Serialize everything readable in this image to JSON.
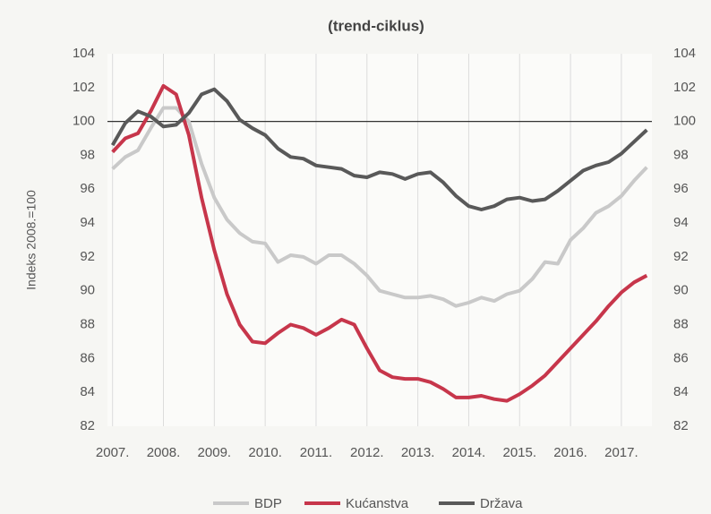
{
  "chart_data": {
    "type": "line",
    "title": "(trend-ciklus)",
    "y_label": "Indeks 2008.=100",
    "x": [
      2007,
      2007.25,
      2007.5,
      2007.75,
      2008,
      2008.25,
      2008.5,
      2008.75,
      2009,
      2009.25,
      2009.5,
      2009.75,
      2010,
      2010.25,
      2010.5,
      2010.75,
      2011,
      2011.25,
      2011.5,
      2011.75,
      2012,
      2012.25,
      2012.5,
      2012.75,
      2013,
      2013.25,
      2013.5,
      2013.75,
      2014,
      2014.25,
      2014.5,
      2014.75,
      2015,
      2015.25,
      2015.5,
      2015.75,
      2016,
      2016.25,
      2016.5,
      2016.75,
      2017,
      2017.25,
      2017.5
    ],
    "series": [
      {
        "name": "BDP",
        "color": "#c9c9c9",
        "values": [
          97.2,
          97.9,
          98.3,
          99.6,
          100.8,
          100.8,
          100.0,
          97.5,
          95.5,
          94.2,
          93.4,
          92.9,
          92.8,
          91.7,
          92.1,
          92.0,
          91.6,
          92.1,
          92.1,
          91.6,
          90.9,
          90.0,
          89.8,
          89.6,
          89.6,
          89.7,
          89.5,
          89.1,
          89.3,
          89.6,
          89.4,
          89.8,
          90.0,
          90.7,
          91.7,
          91.6,
          93.0,
          93.7,
          94.6,
          95.0,
          95.6,
          96.5,
          97.3
        ]
      },
      {
        "name": "Kućanstva",
        "color": "#c7364b",
        "values": [
          98.2,
          99.0,
          99.3,
          100.6,
          102.1,
          101.6,
          99.2,
          95.5,
          92.4,
          89.8,
          88.0,
          87.0,
          86.9,
          87.5,
          88.0,
          87.8,
          87.4,
          87.8,
          88.3,
          88.0,
          86.6,
          85.3,
          84.9,
          84.8,
          84.8,
          84.6,
          84.2,
          83.7,
          83.7,
          83.8,
          83.6,
          83.5,
          83.9,
          84.4,
          85.0,
          85.8,
          86.6,
          87.4,
          88.2,
          89.1,
          89.9,
          90.5,
          90.9
        ]
      },
      {
        "name": "Država",
        "color": "#595959",
        "values": [
          98.6,
          99.9,
          100.6,
          100.3,
          99.7,
          99.8,
          100.5,
          101.6,
          101.9,
          101.2,
          100.1,
          99.6,
          99.2,
          98.4,
          97.9,
          97.8,
          97.4,
          97.3,
          97.2,
          96.8,
          96.7,
          97.0,
          96.9,
          96.6,
          96.9,
          97.0,
          96.4,
          95.6,
          95.0,
          94.8,
          95.0,
          95.4,
          95.5,
          95.3,
          95.4,
          95.9,
          96.5,
          97.1,
          97.4,
          97.6,
          98.1,
          98.8,
          99.5
        ]
      }
    ],
    "xlim": [
      2006.9,
      2017.6
    ],
    "xticks": [
      {
        "value": 2007,
        "label": "2007."
      },
      {
        "value": 2008,
        "label": "2008."
      },
      {
        "value": 2009,
        "label": "2009."
      },
      {
        "value": 2010,
        "label": "2010."
      },
      {
        "value": 2011,
        "label": "2011."
      },
      {
        "value": 2012,
        "label": "2012."
      },
      {
        "value": 2013,
        "label": "2013."
      },
      {
        "value": 2014,
        "label": "2014."
      },
      {
        "value": 2015,
        "label": "2015."
      },
      {
        "value": 2016,
        "label": "2016."
      },
      {
        "value": 2017,
        "label": "2017."
      }
    ],
    "ylim": [
      82,
      104
    ],
    "yticks": [
      82,
      84,
      86,
      88,
      90,
      92,
      94,
      96,
      98,
      100,
      102,
      104
    ],
    "y2lim": [
      82,
      104
    ],
    "y2ticks": [
      82,
      84,
      86,
      88,
      90,
      92,
      94,
      96,
      98,
      100,
      102,
      104
    ],
    "reference_line": 100,
    "grid": true,
    "legend": "bottom"
  }
}
